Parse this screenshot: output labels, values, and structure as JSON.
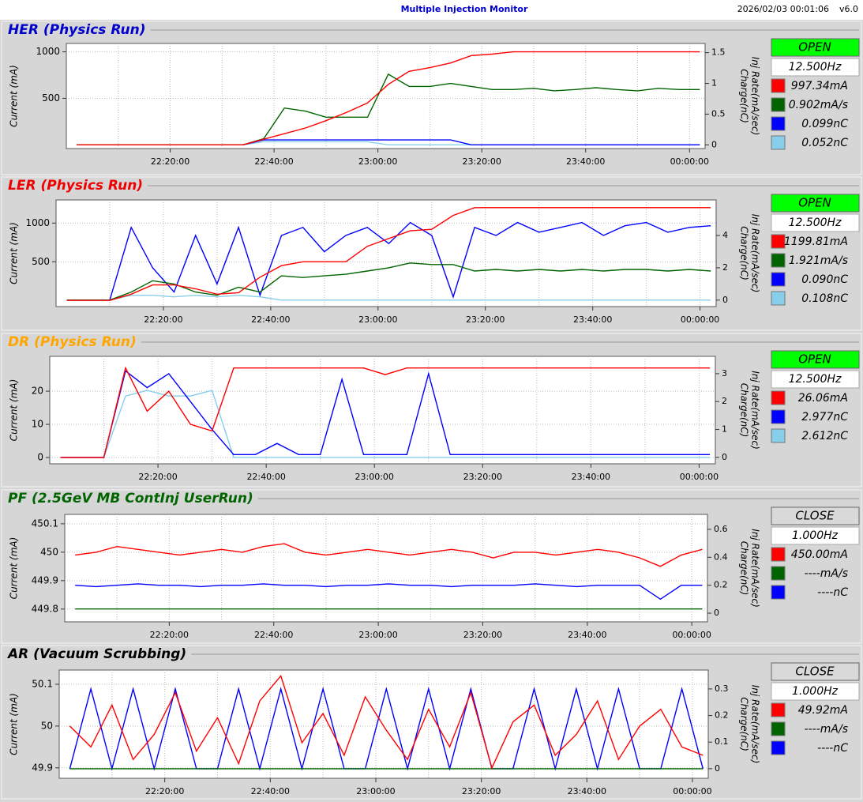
{
  "header": {
    "title": "Multiple Injection Monitor",
    "timestamp": "2026/02/03 00:01:06",
    "version": "v6.0"
  },
  "chart_data": [
    {
      "type": "line",
      "title": "HER  (Physics Run)",
      "title_color": "#0000cc",
      "ylabel": "Current (mA)",
      "y2label": [
        "Charge(nC)",
        "Inj Rate(mA/sec)"
      ],
      "status": {
        "label": "OPEN",
        "color": "#00ff00"
      },
      "rate": "12.500Hz",
      "xlim": [
        "22:00:00",
        "00:03:00"
      ],
      "xticks": [
        "22:20:00",
        "22:40:00",
        "23:00:00",
        "23:20:00",
        "23:40:00",
        "00:00:00"
      ],
      "xgrid": [
        "22:10:00",
        "22:30:00",
        "22:50:00",
        "23:10:00",
        "23:30:00",
        "23:50:00"
      ],
      "ylim": [
        -40,
        1090
      ],
      "yticks": [
        500,
        1000
      ],
      "y2lim": [
        -0.06,
        1.65
      ],
      "y2ticks": [
        0,
        0.5,
        1,
        1.5
      ],
      "grid": true,
      "x": [
        "22:02:00",
        "22:06:00",
        "22:10:00",
        "22:14:00",
        "22:18:00",
        "22:22:00",
        "22:26:00",
        "22:30:00",
        "22:34:00",
        "22:38:00",
        "22:42:00",
        "22:46:00",
        "22:50:00",
        "22:54:00",
        "22:58:00",
        "23:02:00",
        "23:06:00",
        "23:10:00",
        "23:14:00",
        "23:18:00",
        "23:22:00",
        "23:26:00",
        "23:30:00",
        "23:34:00",
        "23:38:00",
        "23:42:00",
        "23:46:00",
        "23:50:00",
        "23:54:00",
        "23:58:00",
        "00:02:00"
      ],
      "series": [
        {
          "color": "#ff0000",
          "readout": "997.34mA",
          "values": [
            0,
            0,
            0,
            0,
            0,
            0,
            0,
            0,
            0,
            60,
            120,
            180,
            260,
            350,
            450,
            650,
            790,
            830,
            880,
            960,
            975,
            1000,
            1000,
            1000,
            1000,
            1000,
            1000,
            1000,
            1000,
            1000,
            1000
          ]
        },
        {
          "color": "#006400",
          "readout": "0.902mA/s",
          "axis": "y2",
          "values": [
            0,
            0,
            0,
            0,
            0,
            0,
            0,
            0,
            0,
            0.1,
            0.6,
            0.55,
            0.45,
            0.45,
            0.45,
            1.15,
            0.95,
            0.95,
            1.0,
            0.95,
            0.9,
            0.9,
            0.92,
            0.88,
            0.9,
            0.93,
            0.9,
            0.88,
            0.92,
            0.9,
            0.9
          ]
        },
        {
          "color": "#0000ff",
          "readout": "0.099nC",
          "axis": "y2",
          "values": [
            0,
            0,
            0,
            0,
            0,
            0,
            0,
            0,
            0,
            0.08,
            0.08,
            0.08,
            0.08,
            0.08,
            0.08,
            0.08,
            0.08,
            0.08,
            0.08,
            0,
            0,
            0,
            0,
            0,
            0,
            0,
            0,
            0,
            0,
            0,
            0
          ]
        },
        {
          "color": "#87ceeb",
          "readout": "0.052nC",
          "axis": "y2",
          "values": [
            0,
            0,
            0,
            0,
            0,
            0,
            0,
            0,
            0,
            0.05,
            0.05,
            0.05,
            0.05,
            0.05,
            0.05,
            0,
            0,
            0,
            0,
            0,
            0,
            0,
            0,
            0,
            0,
            0,
            0,
            0,
            0,
            0,
            0
          ]
        }
      ]
    },
    {
      "type": "line",
      "title": "LER  (Physics Run)",
      "title_color": "#ee0000",
      "ylabel": "Current (mA)",
      "y2label": [
        "Charge(nC)",
        "Inj Rate(mA/sec)"
      ],
      "status": {
        "label": "OPEN",
        "color": "#00ff00"
      },
      "rate": "12.500Hz",
      "xlim": [
        "22:00:00",
        "00:03:00"
      ],
      "xticks": [
        "22:20:00",
        "22:40:00",
        "23:00:00",
        "23:20:00",
        "23:40:00",
        "00:00:00"
      ],
      "xgrid": [
        "22:10:00",
        "22:30:00",
        "22:50:00",
        "23:10:00",
        "23:30:00",
        "23:50:00"
      ],
      "ylim": [
        -80,
        1300
      ],
      "yticks": [
        500,
        1000
      ],
      "y2lim": [
        -0.4,
        6.2
      ],
      "y2ticks": [
        0,
        2,
        4
      ],
      "grid": true,
      "x": [
        "22:02:00",
        "22:06:00",
        "22:10:00",
        "22:14:00",
        "22:18:00",
        "22:22:00",
        "22:26:00",
        "22:30:00",
        "22:34:00",
        "22:38:00",
        "22:42:00",
        "22:46:00",
        "22:50:00",
        "22:54:00",
        "22:58:00",
        "23:02:00",
        "23:06:00",
        "23:10:00",
        "23:14:00",
        "23:18:00",
        "23:22:00",
        "23:26:00",
        "23:30:00",
        "23:34:00",
        "23:38:00",
        "23:42:00",
        "23:46:00",
        "23:50:00",
        "23:54:00",
        "23:58:00",
        "00:02:00"
      ],
      "series": [
        {
          "color": "#ff0000",
          "readout": "1199.81mA",
          "values": [
            0,
            0,
            0,
            80,
            200,
            200,
            150,
            80,
            100,
            300,
            450,
            500,
            500,
            500,
            700,
            800,
            900,
            920,
            1100,
            1200,
            1200,
            1200,
            1200,
            1200,
            1200,
            1200,
            1200,
            1200,
            1200,
            1200,
            1200
          ]
        },
        {
          "color": "#006400",
          "readout": "1.921mA/s",
          "axis": "y2",
          "values": [
            0,
            0,
            0,
            0.5,
            1.2,
            1.0,
            0.5,
            0.3,
            0.8,
            0.5,
            1.5,
            1.4,
            1.5,
            1.6,
            1.8,
            2.0,
            2.3,
            2.2,
            2.2,
            1.8,
            1.9,
            1.8,
            1.9,
            1.8,
            1.9,
            1.8,
            1.9,
            1.9,
            1.8,
            1.9,
            1.8
          ]
        },
        {
          "color": "#0000ff",
          "readout": "0.090nC",
          "axis": "y2",
          "values": [
            0,
            0,
            0,
            4.5,
            2,
            0.5,
            4,
            1,
            4.5,
            0.3,
            4,
            4.5,
            3,
            4,
            4.5,
            3.5,
            4.8,
            4,
            0.2,
            4.5,
            4,
            4.8,
            4.2,
            4.5,
            4.8,
            4,
            4.6,
            4.8,
            4.2,
            4.5,
            4.6
          ]
        },
        {
          "color": "#87ceeb",
          "readout": "0.108nC",
          "axis": "y2",
          "values": [
            0,
            0,
            0,
            0.3,
            0.3,
            0.2,
            0.3,
            0.2,
            0.3,
            0.2,
            0,
            0,
            0,
            0,
            0,
            0,
            0,
            0,
            0,
            0,
            0,
            0,
            0,
            0,
            0,
            0,
            0,
            0,
            0,
            0,
            0
          ]
        }
      ]
    },
    {
      "type": "line",
      "title": "DR  (Physics Run)",
      "title_color": "#ffa500",
      "ylabel": "Current (mA)",
      "y2label": [
        "Charge(nC)",
        "Inj Rate(mA/sec)"
      ],
      "status": {
        "label": "OPEN",
        "color": "#00ff00"
      },
      "rate": "12.500Hz",
      "xlim": [
        "22:00:00",
        "00:03:00"
      ],
      "xticks": [
        "22:20:00",
        "22:40:00",
        "23:00:00",
        "23:20:00",
        "23:40:00",
        "00:00:00"
      ],
      "xgrid": [
        "22:10:00",
        "22:30:00",
        "22:50:00",
        "23:10:00",
        "23:30:00",
        "23:50:00"
      ],
      "ylim": [
        -1.9,
        30.5
      ],
      "yticks": [
        0,
        10,
        20
      ],
      "y2lim": [
        -0.23,
        3.62
      ],
      "y2ticks": [
        0,
        1,
        2,
        3
      ],
      "grid": true,
      "x": [
        "22:02:00",
        "22:06:00",
        "22:10:00",
        "22:14:00",
        "22:18:00",
        "22:22:00",
        "22:26:00",
        "22:30:00",
        "22:34:00",
        "22:38:00",
        "22:42:00",
        "22:46:00",
        "22:50:00",
        "22:54:00",
        "22:58:00",
        "23:02:00",
        "23:06:00",
        "23:10:00",
        "23:14:00",
        "23:18:00",
        "23:22:00",
        "23:26:00",
        "23:30:00",
        "23:34:00",
        "23:38:00",
        "23:42:00",
        "23:46:00",
        "23:50:00",
        "23:54:00",
        "23:58:00",
        "00:02:00"
      ],
      "series": [
        {
          "color": "#ff0000",
          "readout": "26.06mA",
          "values": [
            0,
            0,
            0,
            27,
            14,
            20,
            10,
            8,
            27,
            27,
            27,
            27,
            27,
            27,
            27,
            25,
            27,
            27,
            27,
            27,
            27,
            27,
            27,
            27,
            27,
            27,
            27,
            27,
            27,
            27,
            27
          ]
        },
        {
          "color": "#0000ff",
          "readout": "2.977nC",
          "axis": "y2",
          "values": [
            0,
            0,
            0,
            3.1,
            2.5,
            3.0,
            2.0,
            1.0,
            0.1,
            0.1,
            0.5,
            0.1,
            0.1,
            2.8,
            0.1,
            0.1,
            0.1,
            3.0,
            0.1,
            0.1,
            0.1,
            0.1,
            0.1,
            0.1,
            0.1,
            0.1,
            0.1,
            0.1,
            0.1,
            0.1,
            0.1
          ]
        },
        {
          "color": "#87ceeb",
          "readout": "2.612nC",
          "axis": "y2",
          "values": [
            0,
            0,
            0,
            2.2,
            2.4,
            2.2,
            2.2,
            2.4,
            0,
            0,
            0,
            0,
            0,
            0,
            0,
            0,
            0,
            0,
            0,
            0,
            0,
            0,
            0,
            0,
            0,
            0,
            0,
            0,
            0,
            0,
            0
          ]
        }
      ]
    },
    {
      "type": "line",
      "title": "PF  (2.5GeV MB ContInj UserRun)",
      "title_color": "#006400",
      "ylabel": "Current (mA)",
      "y2label": [
        "Charge(nC)",
        "Inj Rate(mA/sec)"
      ],
      "status": {
        "label": "CLOSE",
        "color": "#d9d9d9"
      },
      "rate": "1.000Hz",
      "xlim": [
        "22:00:00",
        "00:03:00"
      ],
      "xticks": [
        "22:20:00",
        "22:40:00",
        "23:00:00",
        "23:20:00",
        "23:40:00",
        "00:00:00"
      ],
      "xgrid": [
        "22:10:00",
        "22:30:00",
        "22:50:00",
        "23:10:00",
        "23:30:00",
        "23:50:00"
      ],
      "ylim": [
        449.755,
        450.133
      ],
      "yticks": [
        449.8,
        449.9,
        450,
        450.1
      ],
      "y2lim": [
        -0.062,
        0.707
      ],
      "y2ticks": [
        0,
        0.2,
        0.4,
        0.6
      ],
      "grid": true,
      "x": [
        "22:02:00",
        "22:06:00",
        "22:10:00",
        "22:14:00",
        "22:18:00",
        "22:22:00",
        "22:26:00",
        "22:30:00",
        "22:34:00",
        "22:38:00",
        "22:42:00",
        "22:46:00",
        "22:50:00",
        "22:54:00",
        "22:58:00",
        "23:02:00",
        "23:06:00",
        "23:10:00",
        "23:14:00",
        "23:18:00",
        "23:22:00",
        "23:26:00",
        "23:30:00",
        "23:34:00",
        "23:38:00",
        "23:42:00",
        "23:46:00",
        "23:50:00",
        "23:54:00",
        "23:58:00",
        "00:02:00"
      ],
      "series": [
        {
          "color": "#ff0000",
          "readout": "450.00mA",
          "values": [
            449.99,
            450.0,
            450.02,
            450.01,
            450.0,
            449.99,
            450.0,
            450.01,
            450.0,
            450.02,
            450.03,
            450.0,
            449.99,
            450.0,
            450.01,
            450.0,
            449.99,
            450.0,
            450.01,
            450.0,
            449.98,
            450.0,
            450.0,
            449.99,
            450.0,
            450.01,
            450.0,
            449.98,
            449.95,
            449.99,
            450.01
          ]
        },
        {
          "color": "#006400",
          "readout": "----mA/s",
          "axis": "y2",
          "values": [
            0.03,
            0.03,
            0.03,
            0.03,
            0.03,
            0.03,
            0.03,
            0.03,
            0.03,
            0.03,
            0.03,
            0.03,
            0.03,
            0.03,
            0.03,
            0.03,
            0.03,
            0.03,
            0.03,
            0.03,
            0.03,
            0.03,
            0.03,
            0.03,
            0.03,
            0.03,
            0.03,
            0.03,
            0.03,
            0.03,
            0.03
          ]
        },
        {
          "color": "#0000ff",
          "readout": "----nC",
          "axis": "y2",
          "values": [
            0.2,
            0.19,
            0.2,
            0.21,
            0.2,
            0.2,
            0.19,
            0.2,
            0.2,
            0.21,
            0.2,
            0.2,
            0.19,
            0.2,
            0.2,
            0.21,
            0.2,
            0.2,
            0.19,
            0.2,
            0.2,
            0.2,
            0.21,
            0.2,
            0.19,
            0.2,
            0.2,
            0.2,
            0.1,
            0.2,
            0.2
          ]
        }
      ]
    },
    {
      "type": "line",
      "title": "AR  (Vacuum Scrubbing)",
      "title_color": "#000000",
      "ylabel": "Current (mA)",
      "y2label": [
        "Charge(nC)",
        "Inj Rate(mA/sec)"
      ],
      "status": {
        "label": "CLOSE",
        "color": "#d9d9d9"
      },
      "rate": "1.000Hz",
      "xlim": [
        "22:00:00",
        "00:03:00"
      ],
      "xticks": [
        "22:20:00",
        "22:40:00",
        "23:00:00",
        "23:20:00",
        "23:40:00",
        "00:00:00"
      ],
      "xgrid": [
        "22:10:00",
        "22:30:00",
        "22:50:00",
        "23:10:00",
        "23:30:00",
        "23:50:00"
      ],
      "ylim": [
        49.875,
        50.134
      ],
      "yticks": [
        49.9,
        50,
        50.1
      ],
      "y2lim": [
        -0.036,
        0.371
      ],
      "y2ticks": [
        0,
        0.1,
        0.2,
        0.3
      ],
      "grid": true,
      "x": [
        "22:02:00",
        "22:06:00",
        "22:10:00",
        "22:14:00",
        "22:18:00",
        "22:22:00",
        "22:26:00",
        "22:30:00",
        "22:34:00",
        "22:38:00",
        "22:42:00",
        "22:46:00",
        "22:50:00",
        "22:54:00",
        "22:58:00",
        "23:02:00",
        "23:06:00",
        "23:10:00",
        "23:14:00",
        "23:18:00",
        "23:22:00",
        "23:26:00",
        "23:30:00",
        "23:34:00",
        "23:38:00",
        "23:42:00",
        "23:46:00",
        "23:50:00",
        "23:54:00",
        "23:58:00",
        "00:02:00"
      ],
      "series": [
        {
          "color": "#ff0000",
          "readout": "49.92mA",
          "values": [
            50.0,
            49.95,
            50.05,
            49.92,
            49.98,
            50.08,
            49.94,
            50.02,
            49.91,
            50.06,
            50.12,
            49.96,
            50.03,
            49.93,
            50.07,
            49.99,
            49.92,
            50.04,
            49.95,
            50.08,
            49.9,
            50.01,
            50.05,
            49.93,
            49.98,
            50.06,
            49.92,
            50.0,
            50.04,
            49.95,
            49.93
          ]
        },
        {
          "color": "#006400",
          "readout": "----mA/s",
          "axis": "y2",
          "values": [
            0,
            0,
            0,
            0,
            0,
            0,
            0,
            0,
            0,
            0,
            0,
            0,
            0,
            0,
            0,
            0,
            0,
            0,
            0,
            0,
            0,
            0,
            0,
            0,
            0,
            0,
            0,
            0,
            0,
            0,
            0
          ]
        },
        {
          "color": "#0000ff",
          "readout": "----nC",
          "axis": "y2",
          "values": [
            0,
            0.3,
            0,
            0.3,
            0,
            0.3,
            0,
            0,
            0.3,
            0,
            0.3,
            0,
            0.3,
            0,
            0,
            0.3,
            0,
            0.3,
            0,
            0.3,
            0,
            0,
            0.3,
            0,
            0.3,
            0,
            0.3,
            0,
            0,
            0.3,
            0
          ]
        }
      ]
    }
  ]
}
